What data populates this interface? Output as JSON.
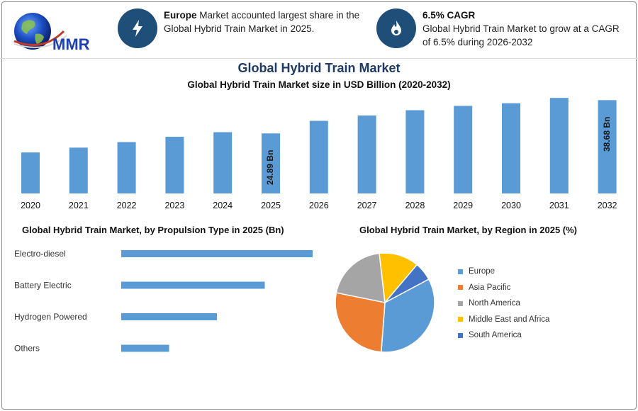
{
  "logo": {
    "text": "MMR"
  },
  "info_boxes": [
    {
      "icon": "lightning-icon",
      "strong": "Europe",
      "text": " Market accounted largest share in the Global Hybrid Train Market in 2025."
    },
    {
      "icon": "flame-icon",
      "strong": "6.5% CAGR",
      "text": "Global Hybrid Train Market to grow at a CAGR of 6.5% during 2026-2032"
    }
  ],
  "header": {
    "title": "Global Hybrid Train Market",
    "subtitle": "Global Hybrid Train Market size in USD Billion (2020-2032)"
  },
  "colors": {
    "bar": "#5b9bd5",
    "title": "#1f3a64",
    "icon_bg": "#1f4e79"
  },
  "chart_data": [
    {
      "type": "bar",
      "title": "Global Hybrid Train Market size in USD Billion (2020-2032)",
      "categories": [
        "2020",
        "2021",
        "2022",
        "2023",
        "2024",
        "2025",
        "2026",
        "2027",
        "2028",
        "2029",
        "2030",
        "2031",
        "2032"
      ],
      "values": [
        17.0,
        19.0,
        21.3,
        23.5,
        25.4,
        24.89,
        30.1,
        32.3,
        34.5,
        36.3,
        37.4,
        39.6,
        38.68
      ],
      "data_labels": [
        {
          "index": 5,
          "text": "24.89 Bn"
        },
        {
          "index": 12,
          "text": "38.68 Bn"
        }
      ],
      "ylim": [
        0,
        42
      ],
      "xlabel": "",
      "ylabel": ""
    },
    {
      "type": "bar",
      "orientation": "horizontal",
      "title": "Global Hybrid Train Market, by Propulsion Type in 2025 (Bn)",
      "categories": [
        "Electro-diesel",
        "Battery Electric",
        "Hydrogen Powered",
        "Others"
      ],
      "values": [
        12.0,
        9.0,
        6.0,
        3.0
      ],
      "xlim": [
        0,
        12
      ]
    },
    {
      "type": "pie",
      "title": "Global Hybrid Train Market, by Region in 2025 (%)",
      "labels": [
        "Europe",
        "Asia Pacific",
        "North America",
        "Middle East and Africa",
        "South America"
      ],
      "values": [
        34,
        27,
        20,
        13,
        6
      ],
      "colors": [
        "#5b9bd5",
        "#ed7d31",
        "#a5a5a5",
        "#ffc000",
        "#4472c4"
      ],
      "legend": "right"
    }
  ]
}
